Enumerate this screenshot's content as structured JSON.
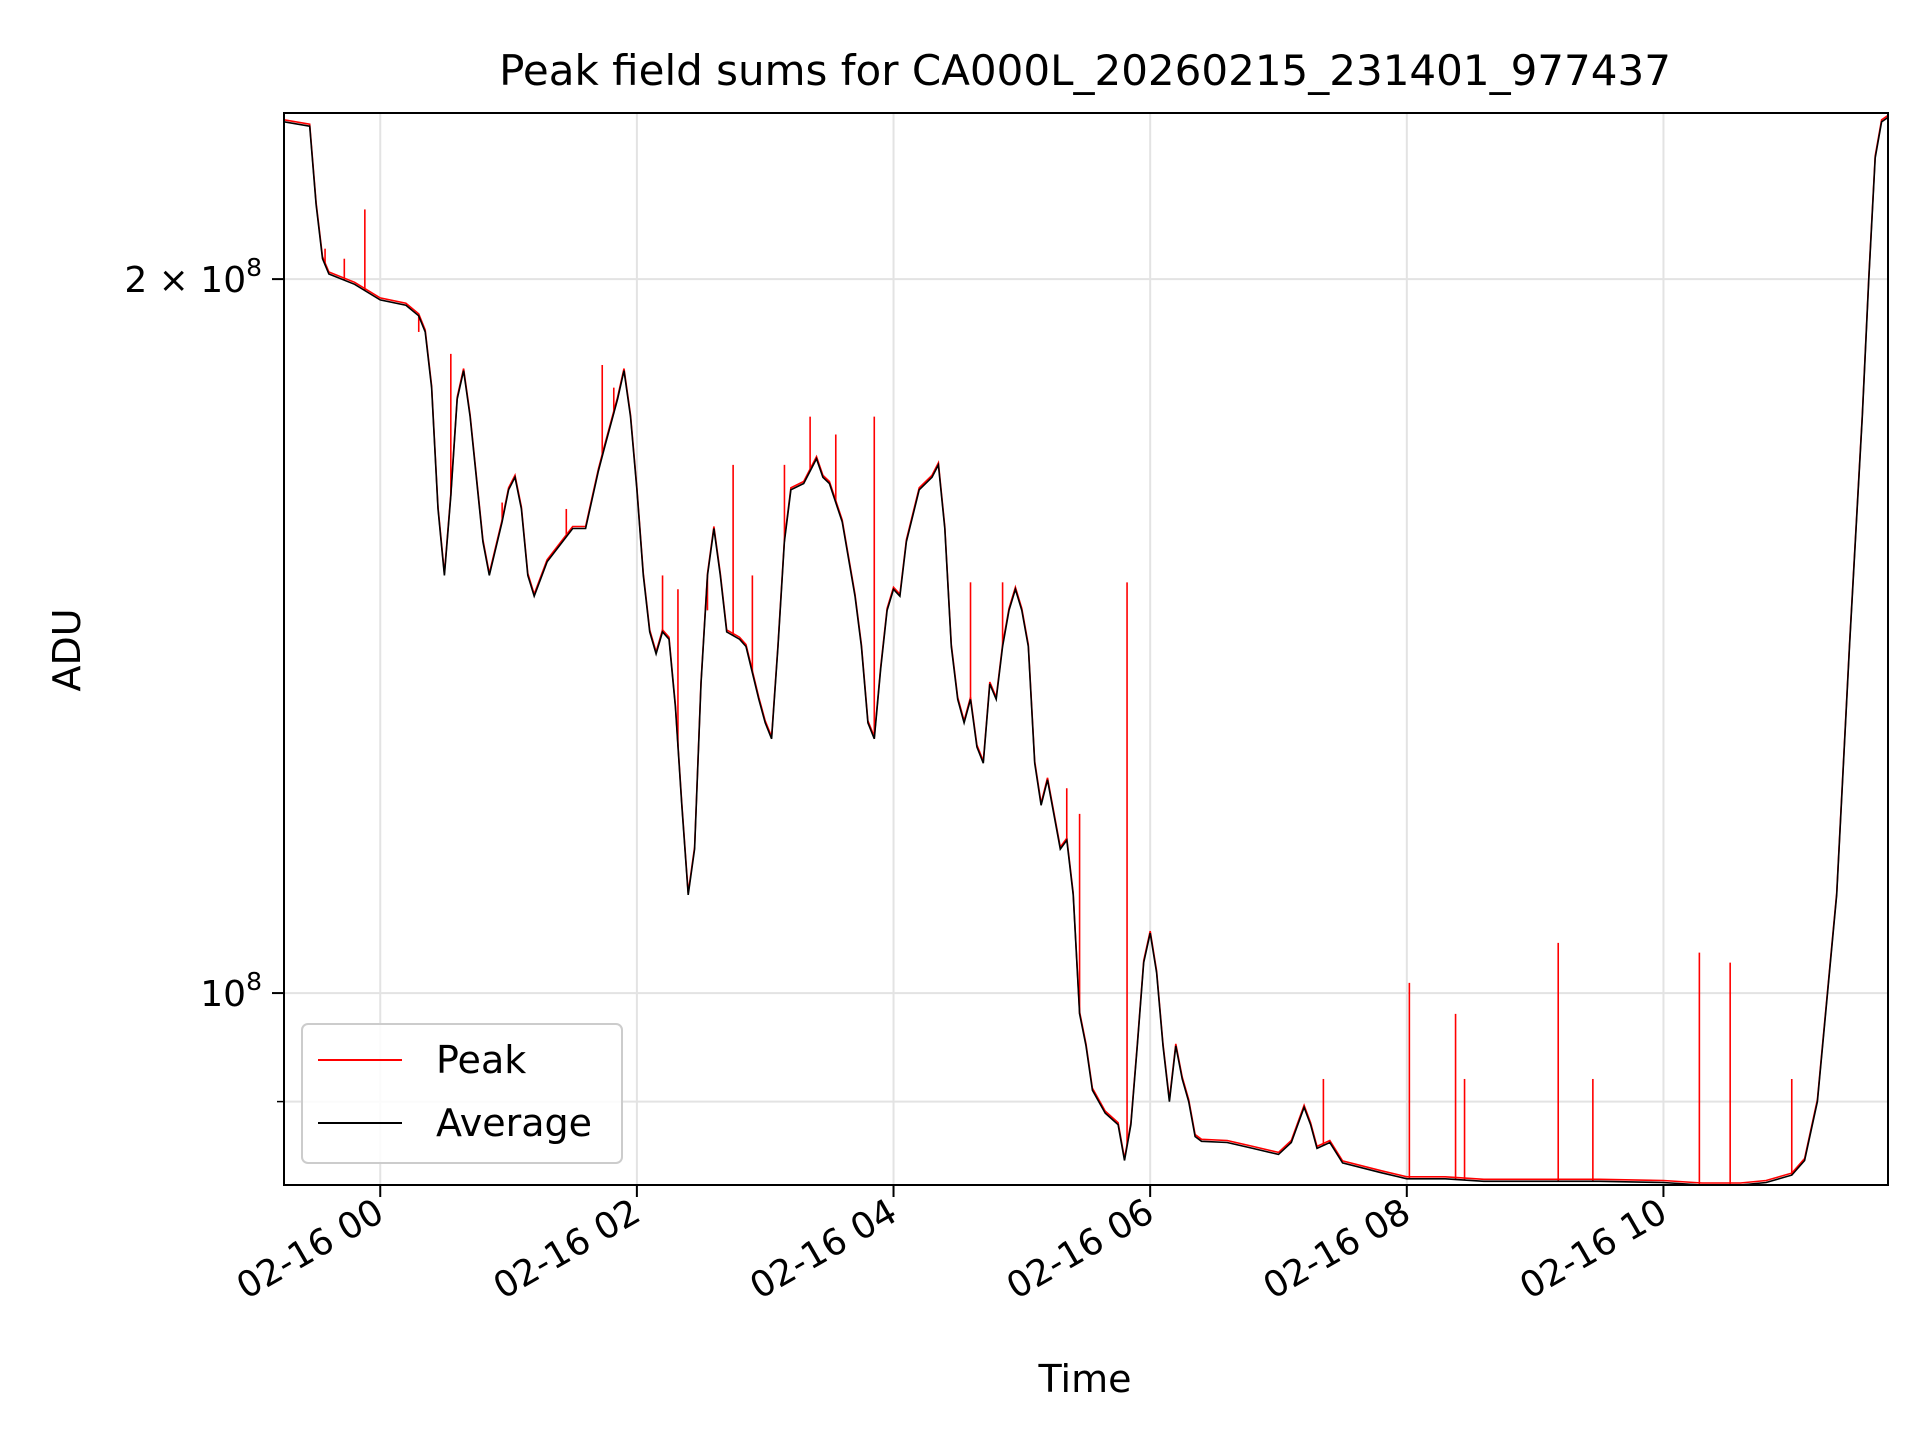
{
  "chart_data": {
    "type": "line",
    "title": "Peak field sums for CA000L_20260215_231401_977437",
    "xlabel": "Time",
    "ylabel": "ADU",
    "yscale": "log",
    "xlim_hours": [
      -0.75,
      11.75
    ],
    "ylim": [
      83000000,
      235000000
    ],
    "grid": true,
    "legend_position": "lower-left",
    "x_ticks": [
      {
        "value": 0,
        "label": "02-16 00"
      },
      {
        "value": 2,
        "label": "02-16 02"
      },
      {
        "value": 4,
        "label": "02-16 04"
      },
      {
        "value": 6,
        "label": "02-16 06"
      },
      {
        "value": 8,
        "label": "02-16 08"
      },
      {
        "value": 10,
        "label": "02-16 10"
      }
    ],
    "y_ticks": [
      {
        "value": 200000000,
        "label": "2",
        "exp_prefix": " × 10",
        "exp": "8"
      },
      {
        "value": 100000000,
        "label": "10",
        "exp_prefix": "",
        "exp": "8"
      }
    ],
    "y_minor_ticks": [
      90000000
    ],
    "series": [
      {
        "name": "Peak",
        "color": "#ff0000",
        "spikes": [
          [
            -0.43,
            206000000
          ],
          [
            -0.28,
            204000000
          ],
          [
            -0.12,
            214000000
          ],
          [
            0.3,
            190000000
          ],
          [
            0.55,
            186000000
          ],
          [
            0.95,
            161000000
          ],
          [
            1.45,
            160000000
          ],
          [
            1.63,
            160000000
          ],
          [
            1.73,
            184000000
          ],
          [
            1.82,
            180000000
          ],
          [
            2.2,
            150000000
          ],
          [
            2.32,
            148000000
          ],
          [
            2.55,
            145000000
          ],
          [
            2.75,
            167000000
          ],
          [
            2.9,
            150000000
          ],
          [
            3.15,
            167000000
          ],
          [
            3.35,
            175000000
          ],
          [
            3.55,
            172000000
          ],
          [
            3.85,
            175000000
          ],
          [
            4.3,
            165000000
          ],
          [
            4.6,
            149000000
          ],
          [
            4.85,
            149000000
          ],
          [
            5.35,
            122000000
          ],
          [
            5.45,
            119000000
          ],
          [
            5.82,
            149000000
          ],
          [
            7.35,
            92000000
          ],
          [
            8.02,
            101000000
          ],
          [
            8.38,
            98000000
          ],
          [
            8.45,
            92000000
          ],
          [
            9.18,
            105000000
          ],
          [
            9.45,
            92000000
          ],
          [
            10.28,
            104000000
          ],
          [
            10.52,
            103000000
          ],
          [
            11.0,
            92000000
          ]
        ]
      },
      {
        "name": "Average",
        "color": "#000000",
        "points": [
          [
            -0.75,
            233000000
          ],
          [
            -0.55,
            232000000
          ],
          [
            -0.5,
            215000000
          ],
          [
            -0.45,
            204000000
          ],
          [
            -0.4,
            201000000
          ],
          [
            -0.2,
            199000000
          ],
          [
            0.0,
            196000000
          ],
          [
            0.2,
            195000000
          ],
          [
            0.3,
            193000000
          ],
          [
            0.35,
            190000000
          ],
          [
            0.4,
            180000000
          ],
          [
            0.45,
            160000000
          ],
          [
            0.5,
            150000000
          ],
          [
            0.55,
            162000000
          ],
          [
            0.6,
            178000000
          ],
          [
            0.65,
            183000000
          ],
          [
            0.7,
            175000000
          ],
          [
            0.8,
            155000000
          ],
          [
            0.85,
            150000000
          ],
          [
            0.95,
            158000000
          ],
          [
            1.0,
            163000000
          ],
          [
            1.05,
            165000000
          ],
          [
            1.1,
            160000000
          ],
          [
            1.15,
            150000000
          ],
          [
            1.2,
            147000000
          ],
          [
            1.3,
            152000000
          ],
          [
            1.5,
            157000000
          ],
          [
            1.6,
            157000000
          ],
          [
            1.7,
            166000000
          ],
          [
            1.75,
            170000000
          ],
          [
            1.85,
            178000000
          ],
          [
            1.9,
            183000000
          ],
          [
            1.95,
            175000000
          ],
          [
            2.0,
            163000000
          ],
          [
            2.05,
            150000000
          ],
          [
            2.1,
            142000000
          ],
          [
            2.15,
            139000000
          ],
          [
            2.2,
            142000000
          ],
          [
            2.25,
            141000000
          ],
          [
            2.3,
            132000000
          ],
          [
            2.35,
            120000000
          ],
          [
            2.4,
            110000000
          ],
          [
            2.45,
            115000000
          ],
          [
            2.5,
            135000000
          ],
          [
            2.55,
            150000000
          ],
          [
            2.6,
            157000000
          ],
          [
            2.65,
            150000000
          ],
          [
            2.7,
            142000000
          ],
          [
            2.8,
            141000000
          ],
          [
            2.85,
            140000000
          ],
          [
            2.95,
            133000000
          ],
          [
            3.0,
            130000000
          ],
          [
            3.05,
            128000000
          ],
          [
            3.1,
            140000000
          ],
          [
            3.15,
            155000000
          ],
          [
            3.2,
            163000000
          ],
          [
            3.3,
            164000000
          ],
          [
            3.4,
            168000000
          ],
          [
            3.45,
            165000000
          ],
          [
            3.5,
            164000000
          ],
          [
            3.6,
            158000000
          ],
          [
            3.7,
            147000000
          ],
          [
            3.75,
            140000000
          ],
          [
            3.8,
            130000000
          ],
          [
            3.85,
            128000000
          ],
          [
            3.9,
            137000000
          ],
          [
            3.95,
            145000000
          ],
          [
            4.0,
            148000000
          ],
          [
            4.05,
            147000000
          ],
          [
            4.1,
            155000000
          ],
          [
            4.2,
            163000000
          ],
          [
            4.3,
            165000000
          ],
          [
            4.35,
            167000000
          ],
          [
            4.4,
            157000000
          ],
          [
            4.45,
            140000000
          ],
          [
            4.5,
            133000000
          ],
          [
            4.55,
            130000000
          ],
          [
            4.6,
            133000000
          ],
          [
            4.65,
            127000000
          ],
          [
            4.7,
            125000000
          ],
          [
            4.75,
            135000000
          ],
          [
            4.8,
            133000000
          ],
          [
            4.85,
            140000000
          ],
          [
            4.9,
            145000000
          ],
          [
            4.95,
            148000000
          ],
          [
            5.0,
            145000000
          ],
          [
            5.05,
            140000000
          ],
          [
            5.1,
            125000000
          ],
          [
            5.15,
            120000000
          ],
          [
            5.2,
            123000000
          ],
          [
            5.3,
            115000000
          ],
          [
            5.35,
            116000000
          ],
          [
            5.4,
            110000000
          ],
          [
            5.45,
            98000000
          ],
          [
            5.5,
            95000000
          ],
          [
            5.55,
            91000000
          ],
          [
            5.65,
            89000000
          ],
          [
            5.75,
            88000000
          ],
          [
            5.8,
            85000000
          ],
          [
            5.85,
            88000000
          ],
          [
            5.9,
            95000000
          ],
          [
            5.95,
            103000000
          ],
          [
            6.0,
            106000000
          ],
          [
            6.05,
            102000000
          ],
          [
            6.1,
            95000000
          ],
          [
            6.15,
            90000000
          ],
          [
            6.2,
            95000000
          ],
          [
            6.25,
            92000000
          ],
          [
            6.3,
            90000000
          ],
          [
            6.35,
            87000000
          ],
          [
            6.4,
            86600000
          ],
          [
            6.6,
            86500000
          ],
          [
            6.8,
            86000000
          ],
          [
            7.0,
            85500000
          ],
          [
            7.1,
            86500000
          ],
          [
            7.2,
            89500000
          ],
          [
            7.25,
            88000000
          ],
          [
            7.3,
            86000000
          ],
          [
            7.4,
            86500000
          ],
          [
            7.5,
            84800000
          ],
          [
            7.8,
            84000000
          ],
          [
            8.0,
            83500000
          ],
          [
            8.3,
            83500000
          ],
          [
            8.6,
            83300000
          ],
          [
            9.0,
            83300000
          ],
          [
            9.5,
            83300000
          ],
          [
            10.0,
            83200000
          ],
          [
            10.3,
            83000000
          ],
          [
            10.6,
            83000000
          ],
          [
            10.8,
            83200000
          ],
          [
            11.0,
            83800000
          ],
          [
            11.1,
            85000000
          ],
          [
            11.2,
            90000000
          ],
          [
            11.35,
            110000000
          ],
          [
            11.45,
            140000000
          ],
          [
            11.55,
            175000000
          ],
          [
            11.6,
            200000000
          ],
          [
            11.65,
            225000000
          ],
          [
            11.7,
            233000000
          ],
          [
            11.75,
            234000000
          ]
        ]
      }
    ]
  }
}
